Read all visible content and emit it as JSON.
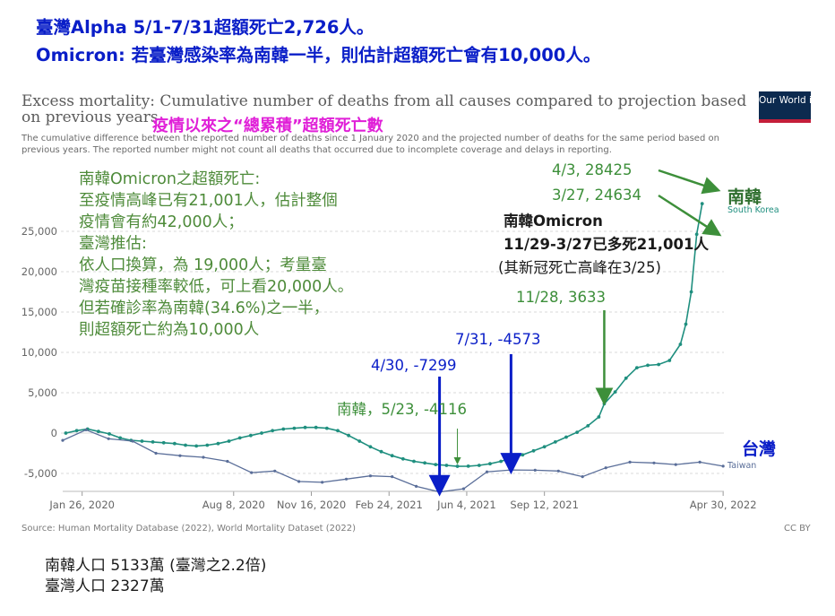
{
  "headings": {
    "line1": "臺灣Alpha 5/1-7/31超額死亡2,726人。",
    "line2": "Omicron: 若臺灣感染率為南韓一半，則估計超額死亡會有10,000人。"
  },
  "owid": {
    "title": "Excess mortality: Cumulative number of deaths from all causes compared to projection based on previous years",
    "subtitle": "The cumulative difference between the reported number of deaths since 1 January 2020 and the projected number of deaths for the same period based on previous years. The reported number might not count all deaths that occurred due to incomplete coverage and delays in reporting.",
    "logo": "Our World in Data",
    "source": "Source: Human Mortality Database (2022), World Mortality Dataset (2022)",
    "license": "CC BY"
  },
  "overlay": {
    "cumulative_label": "疫情以來之“總累積”超額死亡數",
    "korea_note": [
      "南韓Omicron之超額死亡:",
      "至疫情高峰已有21,001人，估計整個",
      "疫情會有約42,000人；",
      "臺灣推估:",
      "依人口換算，為 19,000人；考量臺",
      "灣疫苗接種率較低，可上看20,000人。",
      "但若確診率為南韓(34.6%)之一半，",
      "則超額死亡約為10,000人"
    ],
    "ann_0403": "4/3, 28425",
    "ann_0327": "3/27, 24634",
    "ann_korea_omicron": "南韓Omicron",
    "ann_korea_range": "11/29-3/27已多死21,001人",
    "ann_peak": "(其新冠死亡高峰在3/25)",
    "ann_1128": "11/28, 3633",
    "ann_0731": "7/31, -4573",
    "ann_0430": "4/30, -7299",
    "ann_korea_0523": "南韓，5/23, -4116",
    "label_korea_zh": "南韓",
    "label_taiwan_zh": "台灣"
  },
  "bottom_note": {
    "line1": "南韓人口 5133萬 (臺灣之2.2倍)",
    "line2": "臺灣人口 2327萬"
  },
  "colors": {
    "korea": "#1f8f7f",
    "taiwan": "#5a6e99",
    "blue_arrow": "#0a1ec8",
    "green_arrow": "#3d8f3a",
    "grid": "#d9d9d9"
  },
  "chart_data": {
    "type": "line",
    "title": "Excess mortality: Cumulative number of deaths from all causes compared to projection based on previous years",
    "y_ticks": [
      "-5,000",
      "0",
      "5,000",
      "10,000",
      "15,000",
      "20,000",
      "25,000"
    ],
    "x_ticks": [
      "Jan 26, 2020",
      "Aug 8, 2020",
      "Nov 16, 2020",
      "Feb 24, 2021",
      "Jun 4, 2021",
      "Sep 12, 2021",
      "Apr 30, 2022"
    ],
    "x_tick_dates": [
      "2020-01-26",
      "2020-08-08",
      "2020-11-16",
      "2021-02-24",
      "2021-06-04",
      "2021-09-12",
      "2022-04-30"
    ],
    "ylim": [
      -7000,
      27000
    ],
    "series": [
      {
        "name": "South Korea",
        "points": [
          [
            "2020-01-05",
            0
          ],
          [
            "2020-01-19",
            300
          ],
          [
            "2020-02-02",
            500
          ],
          [
            "2020-02-16",
            200
          ],
          [
            "2020-03-01",
            -100
          ],
          [
            "2020-03-15",
            -600
          ],
          [
            "2020-03-29",
            -900
          ],
          [
            "2020-04-12",
            -1000
          ],
          [
            "2020-04-26",
            -1100
          ],
          [
            "2020-05-10",
            -1200
          ],
          [
            "2020-05-24",
            -1300
          ],
          [
            "2020-06-07",
            -1500
          ],
          [
            "2020-06-21",
            -1600
          ],
          [
            "2020-07-05",
            -1500
          ],
          [
            "2020-07-19",
            -1300
          ],
          [
            "2020-08-02",
            -1000
          ],
          [
            "2020-08-16",
            -600
          ],
          [
            "2020-08-30",
            -300
          ],
          [
            "2020-09-13",
            0
          ],
          [
            "2020-09-27",
            300
          ],
          [
            "2020-10-11",
            500
          ],
          [
            "2020-10-25",
            600
          ],
          [
            "2020-11-08",
            700
          ],
          [
            "2020-11-22",
            700
          ],
          [
            "2020-12-06",
            600
          ],
          [
            "2020-12-20",
            300
          ],
          [
            "2021-01-03",
            -300
          ],
          [
            "2021-01-17",
            -1000
          ],
          [
            "2021-01-31",
            -1700
          ],
          [
            "2021-02-14",
            -2300
          ],
          [
            "2021-02-28",
            -2800
          ],
          [
            "2021-03-14",
            -3200
          ],
          [
            "2021-03-28",
            -3500
          ],
          [
            "2021-04-11",
            -3700
          ],
          [
            "2021-04-25",
            -3900
          ],
          [
            "2021-05-09",
            -4000
          ],
          [
            "2021-05-23",
            -4116
          ],
          [
            "2021-06-06",
            -4100
          ],
          [
            "2021-06-20",
            -4000
          ],
          [
            "2021-07-04",
            -3800
          ],
          [
            "2021-07-18",
            -3500
          ],
          [
            "2021-08-01",
            -3100
          ],
          [
            "2021-08-15",
            -2700
          ],
          [
            "2021-08-29",
            -2200
          ],
          [
            "2021-09-12",
            -1700
          ],
          [
            "2021-09-26",
            -1100
          ],
          [
            "2021-10-10",
            -500
          ],
          [
            "2021-10-24",
            100
          ],
          [
            "2021-11-07",
            900
          ],
          [
            "2021-11-21",
            2000
          ],
          [
            "2021-11-28",
            3633
          ],
          [
            "2021-12-12",
            5100
          ],
          [
            "2021-12-26",
            6800
          ],
          [
            "2022-01-09",
            8100
          ],
          [
            "2022-01-23",
            8400
          ],
          [
            "2022-02-06",
            8500
          ],
          [
            "2022-02-20",
            9000
          ],
          [
            "2022-03-06",
            11000
          ],
          [
            "2022-03-13",
            13500
          ],
          [
            "2022-03-20",
            17500
          ],
          [
            "2022-03-27",
            24634
          ],
          [
            "2022-04-03",
            28425
          ]
        ]
      },
      {
        "name": "Taiwan",
        "points": [
          [
            "2020-01-01",
            -900
          ],
          [
            "2020-01-31",
            400
          ],
          [
            "2020-02-29",
            -700
          ],
          [
            "2020-03-31",
            -1000
          ],
          [
            "2020-04-30",
            -2500
          ],
          [
            "2020-05-31",
            -2800
          ],
          [
            "2020-06-30",
            -3000
          ],
          [
            "2020-07-31",
            -3500
          ],
          [
            "2020-08-31",
            -4900
          ],
          [
            "2020-09-30",
            -4700
          ],
          [
            "2020-10-31",
            -6000
          ],
          [
            "2020-11-30",
            -6100
          ],
          [
            "2020-12-31",
            -5700
          ],
          [
            "2021-01-31",
            -5300
          ],
          [
            "2021-02-28",
            -5400
          ],
          [
            "2021-03-31",
            -6600
          ],
          [
            "2021-04-30",
            -7299
          ],
          [
            "2021-05-31",
            -6900
          ],
          [
            "2021-06-30",
            -4800
          ],
          [
            "2021-07-31",
            -4573
          ],
          [
            "2021-08-31",
            -4600
          ],
          [
            "2021-09-30",
            -4700
          ],
          [
            "2021-10-31",
            -5400
          ],
          [
            "2021-11-30",
            -4300
          ],
          [
            "2021-12-31",
            -3600
          ],
          [
            "2022-01-31",
            -3700
          ],
          [
            "2022-02-28",
            -3900
          ],
          [
            "2022-03-31",
            -3600
          ],
          [
            "2022-04-30",
            -4100
          ]
        ]
      }
    ],
    "series_labels": [
      "South Korea",
      "Taiwan"
    ],
    "grid": true
  }
}
